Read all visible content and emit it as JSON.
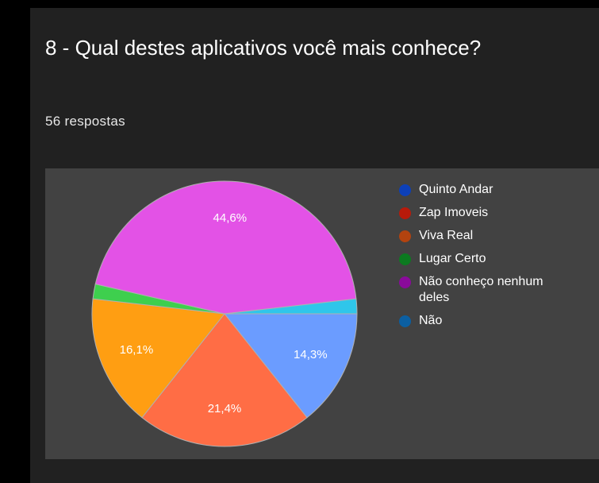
{
  "chart_data": {
    "type": "pie",
    "title": "8 - Qual destes aplicativos você mais conhece?",
    "subtitle": "56 respostas",
    "categories": [
      "Quinto Andar",
      "Zap Imoveis",
      "Viva Real",
      "Lugar Certo",
      "Não conheço nenhum deles",
      "Não"
    ],
    "values": [
      14.3,
      21.4,
      16.1,
      1.8,
      44.6,
      1.8
    ],
    "value_labels": [
      "14,3%",
      "21,4%",
      "16,1%",
      null,
      "44,6%",
      null
    ],
    "colors": [
      "#6b9cff",
      "#ff6d45",
      "#ff9e12",
      "#3ecf4e",
      "#e352e6",
      "#2fc6ea"
    ],
    "legend_colors": [
      "#0d40b8",
      "#b81a0b",
      "#b3430f",
      "#0c7a20",
      "#8a0b9b",
      "#0b5fa2"
    ],
    "legend": "right"
  }
}
